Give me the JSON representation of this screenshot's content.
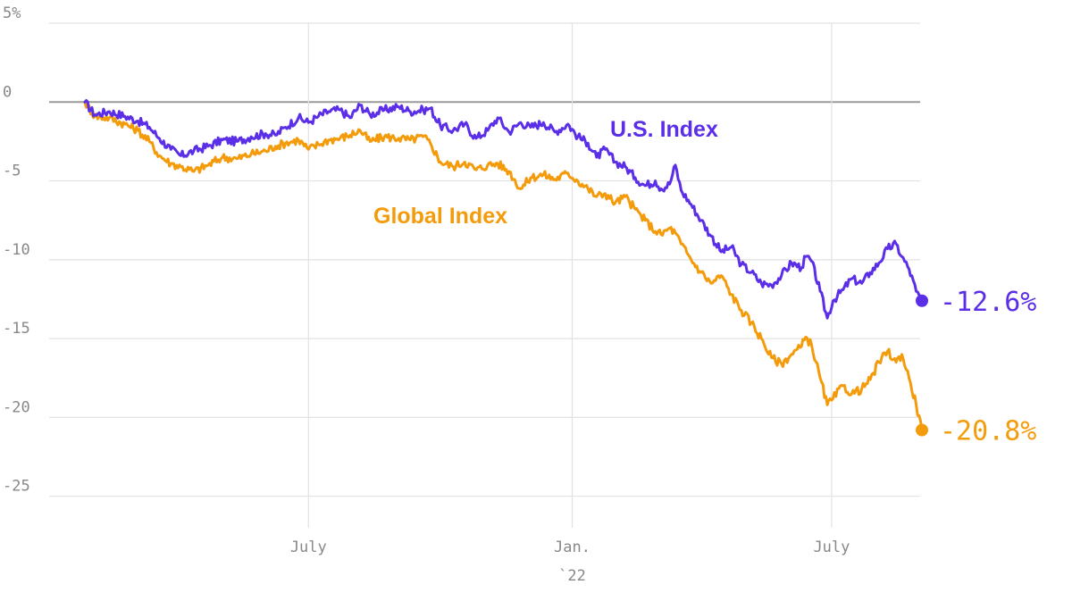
{
  "chart_data": {
    "type": "line",
    "title": "",
    "xlabel": "",
    "ylabel": "",
    "ylim": [
      -27,
      5
    ],
    "xlim": [
      "2021-01-26",
      "2022-09-02"
    ],
    "y_ticks": [
      {
        "value": 5,
        "label": "5%"
      },
      {
        "value": 0,
        "label": "0"
      },
      {
        "value": -5,
        "label": "-5"
      },
      {
        "value": -10,
        "label": "-10"
      },
      {
        "value": -15,
        "label": "-15"
      },
      {
        "value": -20,
        "label": "-20"
      },
      {
        "value": -25,
        "label": "-25"
      }
    ],
    "x_ticks": [
      {
        "date": "2021-07-01",
        "label": "July",
        "sublabel": ""
      },
      {
        "date": "2022-01-01",
        "label": "Jan.",
        "sublabel": "`22"
      },
      {
        "date": "2022-07-01",
        "label": "July",
        "sublabel": ""
      }
    ],
    "grid": true,
    "series": [
      {
        "name": "U.S. Index",
        "color": "#5b2fe8",
        "end_label": "-12.6%",
        "points": [
          [
            "2021-01-26",
            0.0
          ],
          [
            "2021-02-02",
            -0.8
          ],
          [
            "2021-02-12",
            -0.6
          ],
          [
            "2021-02-23",
            -0.9
          ],
          [
            "2021-03-04",
            -1.2
          ],
          [
            "2021-03-12",
            -1.6
          ],
          [
            "2021-03-19",
            -2.3
          ],
          [
            "2021-03-27",
            -3.0
          ],
          [
            "2021-04-03",
            -3.4
          ],
          [
            "2021-04-12",
            -3.1
          ],
          [
            "2021-04-22",
            -2.8
          ],
          [
            "2021-05-02",
            -2.4
          ],
          [
            "2021-05-12",
            -2.5
          ],
          [
            "2021-05-22",
            -2.2
          ],
          [
            "2021-06-01",
            -2.0
          ],
          [
            "2021-06-08",
            -2.1
          ],
          [
            "2021-06-15",
            -1.6
          ],
          [
            "2021-06-24",
            -1.0
          ],
          [
            "2021-07-01",
            -1.3
          ],
          [
            "2021-07-08",
            -0.9
          ],
          [
            "2021-07-15",
            -0.6
          ],
          [
            "2021-07-23",
            -0.5
          ],
          [
            "2021-07-30",
            -1.0
          ],
          [
            "2021-08-06",
            -0.2
          ],
          [
            "2021-08-13",
            -0.8
          ],
          [
            "2021-08-23",
            -0.5
          ],
          [
            "2021-09-02",
            -0.3
          ],
          [
            "2021-09-10",
            -0.6
          ],
          [
            "2021-09-19",
            -0.5
          ],
          [
            "2021-09-24",
            -0.4
          ],
          [
            "2021-10-01",
            -1.5
          ],
          [
            "2021-10-10",
            -1.8
          ],
          [
            "2021-10-18",
            -1.4
          ],
          [
            "2021-10-26",
            -2.3
          ],
          [
            "2021-11-03",
            -1.8
          ],
          [
            "2021-11-10",
            -1.0
          ],
          [
            "2021-11-18",
            -1.9
          ],
          [
            "2021-11-26",
            -1.3
          ],
          [
            "2021-12-03",
            -1.6
          ],
          [
            "2021-12-12",
            -1.3
          ],
          [
            "2021-12-20",
            -1.9
          ],
          [
            "2021-12-29",
            -1.4
          ],
          [
            "2022-01-05",
            -2.2
          ],
          [
            "2022-01-12",
            -2.6
          ],
          [
            "2022-01-18",
            -3.5
          ],
          [
            "2022-01-24",
            -3.0
          ],
          [
            "2022-01-31",
            -3.8
          ],
          [
            "2022-02-07",
            -4.1
          ],
          [
            "2022-02-14",
            -4.8
          ],
          [
            "2022-02-21",
            -5.3
          ],
          [
            "2022-02-28",
            -5.0
          ],
          [
            "2022-03-04",
            -5.5
          ],
          [
            "2022-03-10",
            -5.2
          ],
          [
            "2022-03-14",
            -4.0
          ],
          [
            "2022-03-18",
            -5.6
          ],
          [
            "2022-03-25",
            -6.5
          ],
          [
            "2022-04-01",
            -7.5
          ],
          [
            "2022-04-08",
            -8.5
          ],
          [
            "2022-04-15",
            -9.5
          ],
          [
            "2022-04-22",
            -9.2
          ],
          [
            "2022-04-29",
            -10.3
          ],
          [
            "2022-05-06",
            -10.8
          ],
          [
            "2022-05-13",
            -11.5
          ],
          [
            "2022-05-20",
            -11.6
          ],
          [
            "2022-05-27",
            -11.0
          ],
          [
            "2022-06-03",
            -10.2
          ],
          [
            "2022-06-10",
            -10.5
          ],
          [
            "2022-06-13",
            -9.8
          ],
          [
            "2022-06-17",
            -10.1
          ],
          [
            "2022-06-23",
            -12.0
          ],
          [
            "2022-06-28",
            -13.7
          ],
          [
            "2022-07-02",
            -12.6
          ],
          [
            "2022-07-09",
            -11.9
          ],
          [
            "2022-07-15",
            -11.2
          ],
          [
            "2022-07-22",
            -11.5
          ],
          [
            "2022-07-28",
            -10.8
          ],
          [
            "2022-08-03",
            -10.2
          ],
          [
            "2022-08-09",
            -9.3
          ],
          [
            "2022-08-15",
            -9.0
          ],
          [
            "2022-08-19",
            -9.8
          ],
          [
            "2022-08-24",
            -10.6
          ],
          [
            "2022-08-29",
            -12.0
          ],
          [
            "2022-09-02",
            -12.6
          ]
        ]
      },
      {
        "name": "Global Index",
        "color": "#f49b0b",
        "end_label": "-20.8%",
        "points": [
          [
            "2021-01-26",
            0.0
          ],
          [
            "2021-02-02",
            -0.9
          ],
          [
            "2021-02-12",
            -1.0
          ],
          [
            "2021-02-23",
            -1.4
          ],
          [
            "2021-03-04",
            -1.8
          ],
          [
            "2021-03-12",
            -2.5
          ],
          [
            "2021-03-19",
            -3.4
          ],
          [
            "2021-03-27",
            -3.9
          ],
          [
            "2021-04-03",
            -4.1
          ],
          [
            "2021-04-12",
            -4.4
          ],
          [
            "2021-04-22",
            -4.0
          ],
          [
            "2021-05-02",
            -3.5
          ],
          [
            "2021-05-12",
            -3.6
          ],
          [
            "2021-05-22",
            -3.3
          ],
          [
            "2021-06-01",
            -3.1
          ],
          [
            "2021-06-08",
            -2.8
          ],
          [
            "2021-06-15",
            -2.6
          ],
          [
            "2021-06-24",
            -2.4
          ],
          [
            "2021-07-01",
            -3.0
          ],
          [
            "2021-07-08",
            -2.7
          ],
          [
            "2021-07-15",
            -2.4
          ],
          [
            "2021-07-23",
            -2.3
          ],
          [
            "2021-07-30",
            -2.1
          ],
          [
            "2021-08-06",
            -1.8
          ],
          [
            "2021-08-13",
            -2.5
          ],
          [
            "2021-08-23",
            -2.2
          ],
          [
            "2021-09-02",
            -2.3
          ],
          [
            "2021-09-10",
            -2.4
          ],
          [
            "2021-09-19",
            -2.2
          ],
          [
            "2021-09-24",
            -2.6
          ],
          [
            "2021-10-01",
            -3.8
          ],
          [
            "2021-10-10",
            -4.1
          ],
          [
            "2021-10-18",
            -3.8
          ],
          [
            "2021-10-26",
            -4.3
          ],
          [
            "2021-11-03",
            -4.0
          ],
          [
            "2021-11-10",
            -3.9
          ],
          [
            "2021-11-18",
            -4.4
          ],
          [
            "2021-11-26",
            -5.5
          ],
          [
            "2021-12-03",
            -4.8
          ],
          [
            "2021-12-12",
            -4.6
          ],
          [
            "2021-12-20",
            -4.9
          ],
          [
            "2021-12-29",
            -4.5
          ],
          [
            "2022-01-05",
            -5.0
          ],
          [
            "2022-01-12",
            -5.5
          ],
          [
            "2022-01-18",
            -6.0
          ],
          [
            "2022-01-24",
            -5.8
          ],
          [
            "2022-01-31",
            -6.4
          ],
          [
            "2022-02-07",
            -6.0
          ],
          [
            "2022-02-14",
            -6.8
          ],
          [
            "2022-02-21",
            -7.5
          ],
          [
            "2022-02-28",
            -8.2
          ],
          [
            "2022-03-04",
            -8.4
          ],
          [
            "2022-03-10",
            -8.0
          ],
          [
            "2022-03-14",
            -8.3
          ],
          [
            "2022-03-18",
            -9.0
          ],
          [
            "2022-03-25",
            -10.0
          ],
          [
            "2022-04-01",
            -10.8
          ],
          [
            "2022-04-08",
            -11.5
          ],
          [
            "2022-04-15",
            -11.0
          ],
          [
            "2022-04-22",
            -12.2
          ],
          [
            "2022-04-29",
            -13.2
          ],
          [
            "2022-05-06",
            -14.0
          ],
          [
            "2022-05-13",
            -15.0
          ],
          [
            "2022-05-20",
            -16.2
          ],
          [
            "2022-05-27",
            -16.6
          ],
          [
            "2022-06-03",
            -16.0
          ],
          [
            "2022-06-10",
            -15.5
          ],
          [
            "2022-06-13",
            -14.9
          ],
          [
            "2022-06-17",
            -15.4
          ],
          [
            "2022-06-23",
            -17.5
          ],
          [
            "2022-06-28",
            -19.2
          ],
          [
            "2022-07-02",
            -18.8
          ],
          [
            "2022-07-09",
            -18.0
          ],
          [
            "2022-07-15",
            -18.5
          ],
          [
            "2022-07-22",
            -18.2
          ],
          [
            "2022-07-28",
            -17.6
          ],
          [
            "2022-08-03",
            -16.5
          ],
          [
            "2022-08-09",
            -15.8
          ],
          [
            "2022-08-15",
            -16.5
          ],
          [
            "2022-08-19",
            -16.0
          ],
          [
            "2022-08-24",
            -17.5
          ],
          [
            "2022-08-29",
            -19.2
          ],
          [
            "2022-09-02",
            -20.8
          ]
        ]
      }
    ]
  }
}
